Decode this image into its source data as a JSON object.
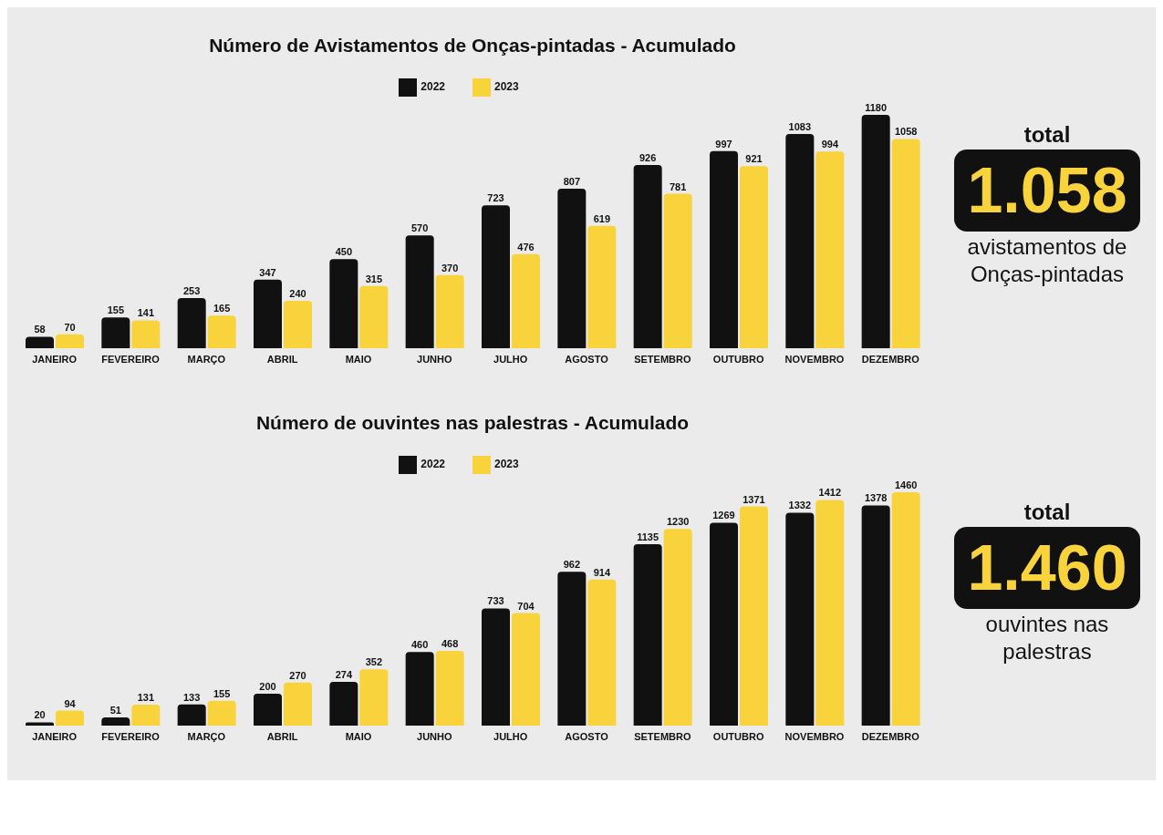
{
  "chart_data": [
    {
      "type": "bar",
      "title": "Número de Avistamentos de Onças-pintadas - Acumulado",
      "categories": [
        "JANEIRO",
        "FEVEREIRO",
        "MARÇO",
        "ABRIL",
        "MAIO",
        "JUNHO",
        "JULHO",
        "AGOSTO",
        "SETEMBRO",
        "OUTUBRO",
        "NOVEMBRO",
        "DEZEMBRO"
      ],
      "series": [
        {
          "name": "2022",
          "color": "#111111",
          "values": [
            58,
            155,
            253,
            347,
            450,
            570,
            723,
            807,
            926,
            997,
            1083,
            1180
          ]
        },
        {
          "name": "2023",
          "color": "#f9d33c",
          "values": [
            70,
            141,
            165,
            240,
            315,
            370,
            476,
            619,
            781,
            921,
            994,
            1058
          ]
        }
      ],
      "data_labels": true,
      "legend": "top",
      "grid": false
    },
    {
      "type": "other",
      "annotations": [
        "total",
        "1.058",
        "avistamentos de Onças-pintadas"
      ]
    },
    {
      "type": "bar",
      "title": "Número de ouvintes nas palestras - Acumulado",
      "categories": [
        "JANEIRO",
        "FEVEREIRO",
        "MARÇO",
        "ABRIL",
        "MAIO",
        "JUNHO",
        "JULHO",
        "AGOSTO",
        "SETEMBRO",
        "OUTUBRO",
        "NOVEMBRO",
        "DEZEMBRO"
      ],
      "series": [
        {
          "name": "2022",
          "color": "#111111",
          "values": [
            20,
            51,
            133,
            200,
            274,
            460,
            733,
            962,
            1135,
            1269,
            1332,
            1378
          ]
        },
        {
          "name": "2023",
          "color": "#f9d33c",
          "values": [
            94,
            131,
            155,
            270,
            352,
            468,
            704,
            914,
            1230,
            1371,
            1412,
            1460
          ]
        }
      ],
      "data_labels": true,
      "legend": "top",
      "grid": false
    },
    {
      "type": "other",
      "annotations": [
        "total",
        "1.460",
        "ouvintes nas palestras"
      ]
    }
  ]
}
